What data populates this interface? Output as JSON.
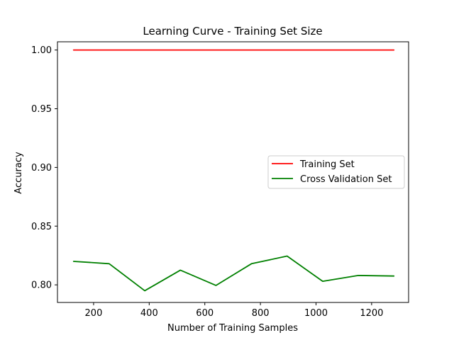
{
  "chart_data": {
    "type": "line",
    "title": "Learning Curve - Training Set Size",
    "xlabel": "Number of Training Samples",
    "ylabel": "Accuracy",
    "xlim": [
      70,
      1333
    ],
    "ylim": [
      0.785,
      1.007
    ],
    "x_ticks": [
      200,
      400,
      600,
      800,
      1000,
      1200
    ],
    "y_ticks": [
      0.8,
      0.85,
      0.9,
      0.95,
      1.0
    ],
    "x_tick_labels": [
      "200",
      "400",
      "600",
      "800",
      "1000",
      "1200"
    ],
    "y_tick_labels": [
      "0.80",
      "0.85",
      "0.90",
      "0.95",
      "1.00"
    ],
    "grid": false,
    "legend_position": "center-right",
    "series": [
      {
        "name": "Training Set",
        "color": "#ff0000",
        "x": [
          128,
          256,
          384,
          512,
          640,
          768,
          896,
          1024,
          1152,
          1280
        ],
        "values": [
          1.0,
          1.0,
          1.0,
          1.0,
          1.0,
          1.0,
          1.0,
          1.0,
          1.0,
          1.0
        ]
      },
      {
        "name": "Cross Validation Set",
        "color": "#008000",
        "x": [
          128,
          256,
          384,
          512,
          640,
          768,
          896,
          1024,
          1152,
          1280
        ],
        "values": [
          0.82,
          0.818,
          0.795,
          0.8125,
          0.7995,
          0.818,
          0.8245,
          0.803,
          0.808,
          0.8075
        ]
      }
    ]
  }
}
